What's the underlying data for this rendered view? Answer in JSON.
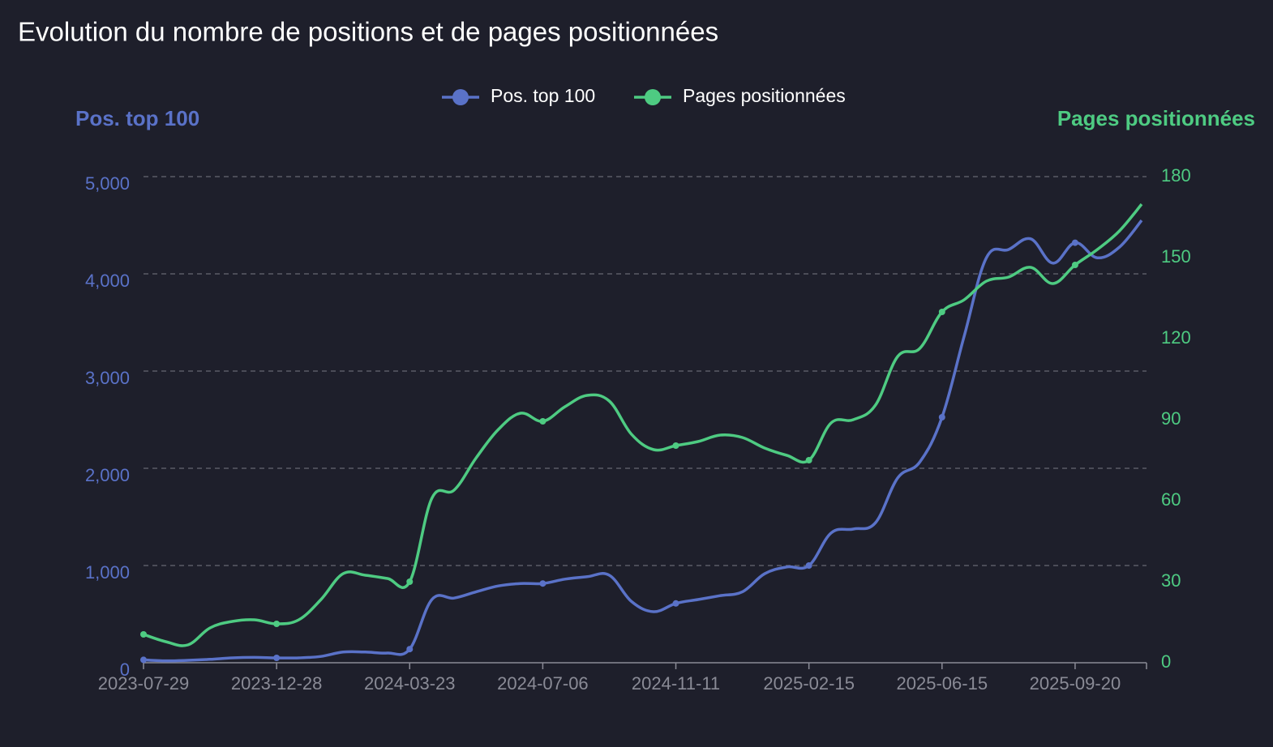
{
  "chart_data": {
    "type": "line",
    "title": "Evolution du nombre de positions et de pages positionnées",
    "ylabel": "Pos. top 100",
    "y2label": "Pages positionnées",
    "categories": [
      "2023-07-29",
      null,
      null,
      null,
      null,
      null,
      "2023-12-28",
      null,
      null,
      null,
      null,
      null,
      "2024-03-23",
      null,
      null,
      null,
      null,
      null,
      "2024-07-06",
      null,
      null,
      null,
      null,
      null,
      "2024-11-11",
      null,
      null,
      null,
      null,
      null,
      "2025-02-15",
      null,
      null,
      null,
      null,
      null,
      "2025-06-15",
      null,
      null,
      null,
      null,
      null,
      "2025-09-20",
      null,
      null,
      null
    ],
    "series": [
      {
        "name": "Pos. top 100",
        "color": "#5a72c8",
        "axis": "y",
        "values": [
          30,
          20,
          25,
          35,
          50,
          55,
          50,
          50,
          65,
          110,
          110,
          100,
          140,
          650,
          665,
          730,
          790,
          815,
          815,
          860,
          885,
          900,
          630,
          525,
          610,
          650,
          690,
          730,
          915,
          985,
          1000,
          1335,
          1375,
          1440,
          1900,
          2065,
          2525,
          3360,
          4165,
          4250,
          4360,
          4110,
          4320,
          4165,
          4275,
          4550
        ]
      },
      {
        "name": "Pages positionnées",
        "color": "#4ecb82",
        "axis": "y2",
        "values": [
          10.5,
          7.8,
          6.6,
          12.9,
          15.3,
          15.9,
          14.4,
          15.9,
          23.4,
          33,
          32.4,
          31.2,
          30,
          60.9,
          63.9,
          75.9,
          86.4,
          92.4,
          89.4,
          94.8,
          99,
          96.9,
          84.6,
          78.9,
          80.4,
          81.9,
          84.3,
          83.4,
          79.5,
          76.8,
          75,
          88.8,
          90,
          95.4,
          113.4,
          116.4,
          129.9,
          134.4,
          141.3,
          142.8,
          146.4,
          140.4,
          147.3,
          153,
          159.9,
          169.8
        ]
      }
    ],
    "ylim": [
      0,
      5000
    ],
    "yticks": [
      0,
      {
        "value": 1000,
        "label": "1,000"
      },
      {
        "value": 2000,
        "label": "2,000"
      },
      {
        "value": 3000,
        "label": "3,000"
      },
      {
        "value": 4000,
        "label": "4,000"
      },
      {
        "value": 5000,
        "label": "5,000"
      }
    ],
    "y2lim": [
      0,
      180
    ],
    "y2ticks": [
      0,
      30,
      60,
      90,
      120,
      150,
      180
    ],
    "grid": true
  }
}
